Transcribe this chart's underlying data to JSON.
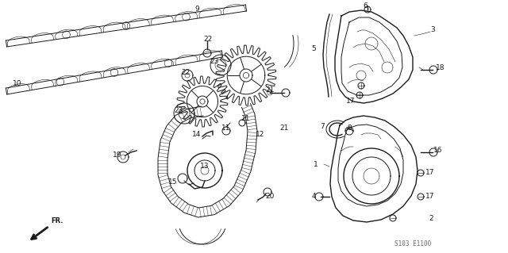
{
  "bg_color": "#ffffff",
  "diagram_code": "S103 E1100",
  "line_color": "#1a1a1a",
  "label_fontsize": 6.5,
  "diagram_code_fontsize": 5.5,
  "figsize": [
    6.4,
    3.19
  ],
  "dpi": 100
}
